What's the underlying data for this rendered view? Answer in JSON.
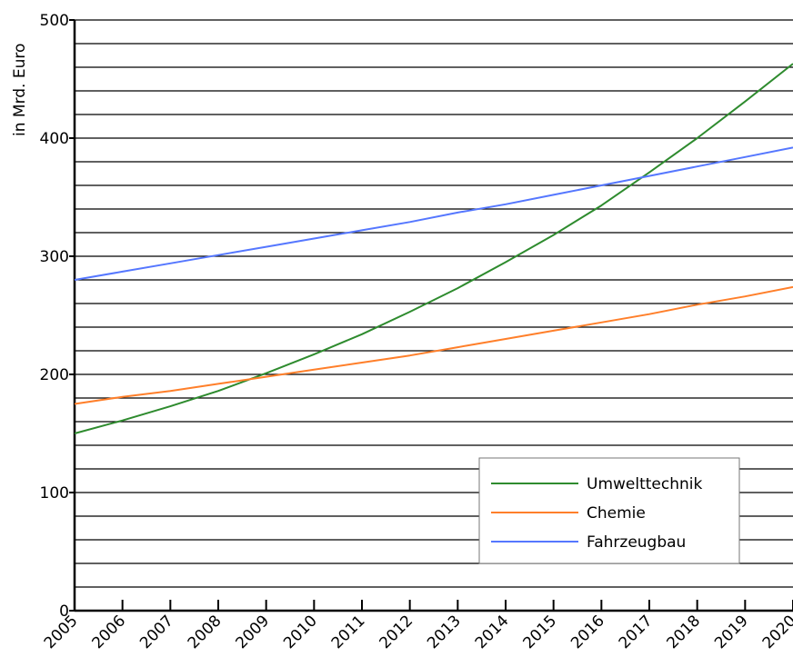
{
  "chart_data": {
    "type": "line",
    "title": "",
    "xlabel": "",
    "ylabel": "in Mrd. Euro",
    "x": [
      "2005",
      "2006",
      "2007",
      "2008",
      "2009",
      "2010",
      "2011",
      "2012",
      "2013",
      "2014",
      "2015",
      "2016",
      "2017",
      "2018",
      "2019",
      "2020"
    ],
    "xlim": [
      2005,
      2020
    ],
    "ylim": [
      0,
      500
    ],
    "y_ticks": [
      "0",
      "100",
      "200",
      "300",
      "400",
      "500"
    ],
    "grid": true,
    "legend": "bottom-right",
    "series": [
      {
        "name": "Umwelttechnik",
        "color": "#2e8b2e",
        "values": [
          150,
          161,
          173,
          186,
          201,
          217,
          234,
          253,
          273,
          295,
          318,
          343,
          371,
          400,
          431,
          463
        ]
      },
      {
        "name": "Chemie",
        "color": "#ff7f2a",
        "values": [
          175,
          181,
          186,
          192,
          198,
          204,
          210,
          216,
          223,
          230,
          237,
          244,
          251,
          259,
          266,
          274
        ]
      },
      {
        "name": "Fahrzeugbau",
        "color": "#5577ff",
        "values": [
          280,
          287,
          294,
          301,
          308,
          315,
          322,
          329,
          337,
          344,
          352,
          360,
          368,
          376,
          384,
          392
        ]
      }
    ]
  }
}
